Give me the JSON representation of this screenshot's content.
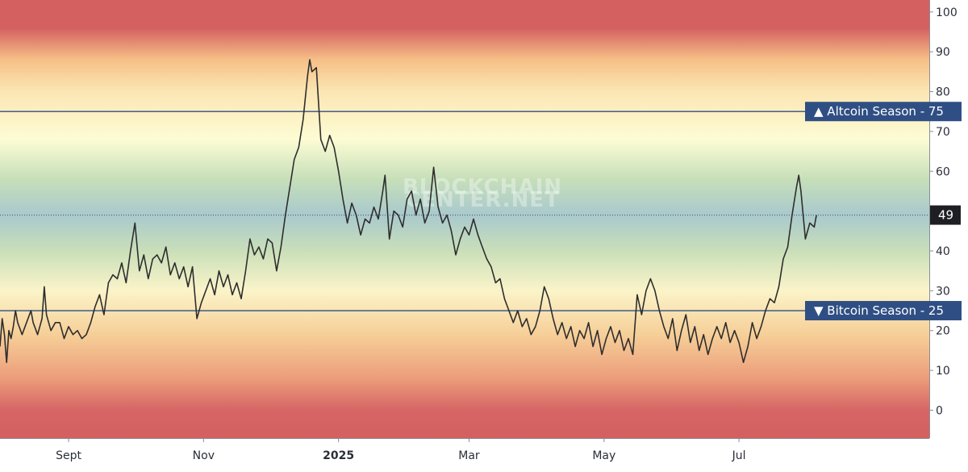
{
  "chart_data": {
    "type": "line",
    "title": "",
    "xlabel": "",
    "ylabel": "",
    "ylim": [
      -7,
      103
    ],
    "yticks": [
      0,
      10,
      20,
      30,
      40,
      50,
      60,
      70,
      80,
      90,
      100
    ],
    "grid": false,
    "x_start": "2024-08-01",
    "x_end": "2025-09-25",
    "x_ticks": [
      {
        "label": "Sept",
        "date": "2024-09-01",
        "bold": false
      },
      {
        "label": "Nov",
        "date": "2024-11-01",
        "bold": false
      },
      {
        "label": "2025",
        "date": "2025-01-01",
        "bold": true
      },
      {
        "label": "Mar",
        "date": "2025-03-01",
        "bold": false
      },
      {
        "label": "May",
        "date": "2025-05-01",
        "bold": false
      },
      {
        "label": "Jul",
        "date": "2025-07-01",
        "bold": false
      }
    ],
    "thresholds": [
      {
        "name": "Altcoin Season",
        "value": 75,
        "marker": "▲",
        "label": "▲ Altcoin Season - 75",
        "color": "#2f4f84"
      },
      {
        "name": "Bitcoin Season",
        "value": 25,
        "marker": "▼",
        "label": "▼ Bitcoin Season - 25",
        "color": "#2f4f84"
      }
    ],
    "current_value": 49,
    "current_label": "49",
    "series": [
      {
        "color": "#2e2e2e",
        "points": [
          [
            "2024-08-01",
            16
          ],
          [
            "2024-08-02",
            23
          ],
          [
            "2024-08-03",
            19
          ],
          [
            "2024-08-04",
            12
          ],
          [
            "2024-08-05",
            20
          ],
          [
            "2024-08-06",
            18
          ],
          [
            "2024-08-07",
            21
          ],
          [
            "2024-08-08",
            25
          ],
          [
            "2024-08-09",
            22
          ],
          [
            "2024-08-11",
            19
          ],
          [
            "2024-08-13",
            22
          ],
          [
            "2024-08-15",
            25
          ],
          [
            "2024-08-16",
            22
          ],
          [
            "2024-08-18",
            19
          ],
          [
            "2024-08-20",
            23
          ],
          [
            "2024-08-21",
            31
          ],
          [
            "2024-08-22",
            24
          ],
          [
            "2024-08-24",
            20
          ],
          [
            "2024-08-26",
            22
          ],
          [
            "2024-08-28",
            22
          ],
          [
            "2024-08-30",
            18
          ],
          [
            "2024-09-01",
            21
          ],
          [
            "2024-09-03",
            19
          ],
          [
            "2024-09-05",
            20
          ],
          [
            "2024-09-07",
            18
          ],
          [
            "2024-09-09",
            19
          ],
          [
            "2024-09-11",
            22
          ],
          [
            "2024-09-13",
            26
          ],
          [
            "2024-09-15",
            29
          ],
          [
            "2024-09-17",
            24
          ],
          [
            "2024-09-19",
            32
          ],
          [
            "2024-09-21",
            34
          ],
          [
            "2024-09-23",
            33
          ],
          [
            "2024-09-25",
            37
          ],
          [
            "2024-09-27",
            32
          ],
          [
            "2024-09-29",
            40
          ],
          [
            "2024-10-01",
            47
          ],
          [
            "2024-10-03",
            35
          ],
          [
            "2024-10-05",
            39
          ],
          [
            "2024-10-07",
            33
          ],
          [
            "2024-10-09",
            38
          ],
          [
            "2024-10-11",
            39
          ],
          [
            "2024-10-13",
            37
          ],
          [
            "2024-10-15",
            41
          ],
          [
            "2024-10-17",
            34
          ],
          [
            "2024-10-19",
            37
          ],
          [
            "2024-10-21",
            33
          ],
          [
            "2024-10-23",
            36
          ],
          [
            "2024-10-25",
            31
          ],
          [
            "2024-10-27",
            36
          ],
          [
            "2024-10-29",
            23
          ],
          [
            "2024-10-31",
            27
          ],
          [
            "2024-11-02",
            30
          ],
          [
            "2024-11-04",
            33
          ],
          [
            "2024-11-06",
            29
          ],
          [
            "2024-11-08",
            35
          ],
          [
            "2024-11-10",
            31
          ],
          [
            "2024-11-12",
            34
          ],
          [
            "2024-11-14",
            29
          ],
          [
            "2024-11-16",
            32
          ],
          [
            "2024-11-18",
            28
          ],
          [
            "2024-11-20",
            35
          ],
          [
            "2024-11-22",
            43
          ],
          [
            "2024-11-24",
            39
          ],
          [
            "2024-11-26",
            41
          ],
          [
            "2024-11-28",
            38
          ],
          [
            "2024-11-30",
            43
          ],
          [
            "2024-12-02",
            42
          ],
          [
            "2024-12-04",
            35
          ],
          [
            "2024-12-06",
            41
          ],
          [
            "2024-12-08",
            49
          ],
          [
            "2024-12-10",
            56
          ],
          [
            "2024-12-12",
            63
          ],
          [
            "2024-12-14",
            66
          ],
          [
            "2024-12-16",
            73
          ],
          [
            "2024-12-18",
            84
          ],
          [
            "2024-12-19",
            88
          ],
          [
            "2024-12-20",
            85
          ],
          [
            "2024-12-22",
            86
          ],
          [
            "2024-12-24",
            68
          ],
          [
            "2024-12-26",
            65
          ],
          [
            "2024-12-28",
            69
          ],
          [
            "2024-12-30",
            66
          ],
          [
            "2025-01-01",
            60
          ],
          [
            "2025-01-03",
            53
          ],
          [
            "2025-01-05",
            47
          ],
          [
            "2025-01-07",
            52
          ],
          [
            "2025-01-09",
            49
          ],
          [
            "2025-01-11",
            44
          ],
          [
            "2025-01-13",
            48
          ],
          [
            "2025-01-15",
            47
          ],
          [
            "2025-01-17",
            51
          ],
          [
            "2025-01-19",
            48
          ],
          [
            "2025-01-21",
            55
          ],
          [
            "2025-01-22",
            59
          ],
          [
            "2025-01-24",
            43
          ],
          [
            "2025-01-26",
            50
          ],
          [
            "2025-01-28",
            49
          ],
          [
            "2025-01-30",
            46
          ],
          [
            "2025-02-01",
            53
          ],
          [
            "2025-02-03",
            55
          ],
          [
            "2025-02-05",
            49
          ],
          [
            "2025-02-07",
            53
          ],
          [
            "2025-02-09",
            47
          ],
          [
            "2025-02-11",
            50
          ],
          [
            "2025-02-13",
            61
          ],
          [
            "2025-02-15",
            51
          ],
          [
            "2025-02-17",
            47
          ],
          [
            "2025-02-19",
            49
          ],
          [
            "2025-02-21",
            45
          ],
          [
            "2025-02-23",
            39
          ],
          [
            "2025-02-25",
            43
          ],
          [
            "2025-02-27",
            46
          ],
          [
            "2025-03-01",
            44
          ],
          [
            "2025-03-03",
            48
          ],
          [
            "2025-03-05",
            44
          ],
          [
            "2025-03-07",
            41
          ],
          [
            "2025-03-09",
            38
          ],
          [
            "2025-03-11",
            36
          ],
          [
            "2025-03-13",
            32
          ],
          [
            "2025-03-15",
            33
          ],
          [
            "2025-03-17",
            28
          ],
          [
            "2025-03-19",
            25
          ],
          [
            "2025-03-21",
            22
          ],
          [
            "2025-03-23",
            25
          ],
          [
            "2025-03-25",
            21
          ],
          [
            "2025-03-27",
            23
          ],
          [
            "2025-03-29",
            19
          ],
          [
            "2025-03-31",
            21
          ],
          [
            "2025-04-02",
            25
          ],
          [
            "2025-04-04",
            31
          ],
          [
            "2025-04-06",
            28
          ],
          [
            "2025-04-08",
            23
          ],
          [
            "2025-04-10",
            19
          ],
          [
            "2025-04-12",
            22
          ],
          [
            "2025-04-14",
            18
          ],
          [
            "2025-04-16",
            21
          ],
          [
            "2025-04-18",
            16
          ],
          [
            "2025-04-20",
            20
          ],
          [
            "2025-04-22",
            18
          ],
          [
            "2025-04-24",
            22
          ],
          [
            "2025-04-26",
            16
          ],
          [
            "2025-04-28",
            20
          ],
          [
            "2025-04-30",
            14
          ],
          [
            "2025-05-02",
            18
          ],
          [
            "2025-05-04",
            21
          ],
          [
            "2025-05-06",
            17
          ],
          [
            "2025-05-08",
            20
          ],
          [
            "2025-05-10",
            15
          ],
          [
            "2025-05-12",
            18
          ],
          [
            "2025-05-14",
            14
          ],
          [
            "2025-05-16",
            29
          ],
          [
            "2025-05-18",
            24
          ],
          [
            "2025-05-20",
            30
          ],
          [
            "2025-05-22",
            33
          ],
          [
            "2025-05-24",
            30
          ],
          [
            "2025-05-26",
            25
          ],
          [
            "2025-05-28",
            21
          ],
          [
            "2025-05-30",
            18
          ],
          [
            "2025-06-01",
            23
          ],
          [
            "2025-06-03",
            15
          ],
          [
            "2025-06-05",
            20
          ],
          [
            "2025-06-07",
            24
          ],
          [
            "2025-06-09",
            17
          ],
          [
            "2025-06-11",
            21
          ],
          [
            "2025-06-13",
            15
          ],
          [
            "2025-06-15",
            19
          ],
          [
            "2025-06-17",
            14
          ],
          [
            "2025-06-19",
            18
          ],
          [
            "2025-06-21",
            21
          ],
          [
            "2025-06-23",
            18
          ],
          [
            "2025-06-25",
            22
          ],
          [
            "2025-06-27",
            17
          ],
          [
            "2025-06-29",
            20
          ],
          [
            "2025-07-01",
            17
          ],
          [
            "2025-07-03",
            12
          ],
          [
            "2025-07-05",
            16
          ],
          [
            "2025-07-07",
            22
          ],
          [
            "2025-07-09",
            18
          ],
          [
            "2025-07-11",
            21
          ],
          [
            "2025-07-13",
            25
          ],
          [
            "2025-07-15",
            28
          ],
          [
            "2025-07-17",
            27
          ],
          [
            "2025-07-19",
            31
          ],
          [
            "2025-07-21",
            38
          ],
          [
            "2025-07-23",
            41
          ],
          [
            "2025-07-25",
            49
          ],
          [
            "2025-07-27",
            56
          ],
          [
            "2025-07-28",
            59
          ],
          [
            "2025-07-29",
            55
          ],
          [
            "2025-07-31",
            43
          ],
          [
            "2025-08-02",
            47
          ],
          [
            "2025-08-04",
            46
          ],
          [
            "2025-08-05",
            49
          ]
        ]
      }
    ],
    "background_bands": [
      {
        "value": 103,
        "color": "#d46060"
      },
      {
        "value": 96,
        "color": "#d46060"
      },
      {
        "value": 88,
        "color": "#f6c087"
      },
      {
        "value": 80,
        "color": "#fbe6b3"
      },
      {
        "value": 68,
        "color": "#fdfcd4"
      },
      {
        "value": 58,
        "color": "#c6dfb9"
      },
      {
        "value": 49,
        "color": "#a9c9cd"
      },
      {
        "value": 40,
        "color": "#c9dfb9"
      },
      {
        "value": 30,
        "color": "#fbf4c9"
      },
      {
        "value": 19,
        "color": "#f6cf98"
      },
      {
        "value": 8,
        "color": "#ec9d7a"
      },
      {
        "value": 0,
        "color": "#d66565"
      },
      {
        "value": -7,
        "color": "#d46060"
      }
    ]
  },
  "watermark": {
    "line1": "BLOCKCHAIN",
    "line2": "CENTER.NET"
  }
}
